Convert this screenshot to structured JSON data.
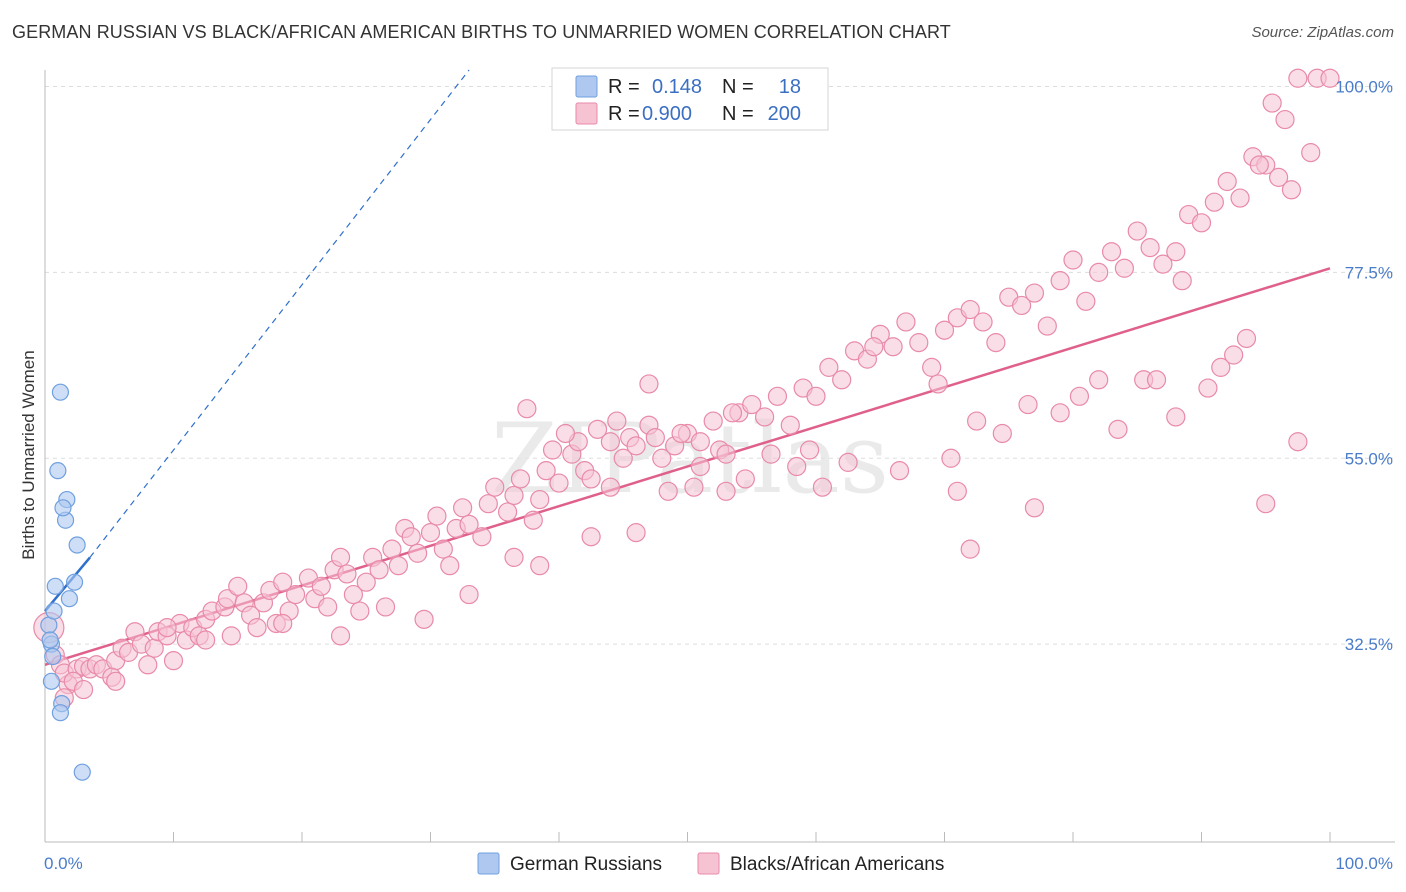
{
  "header": {
    "title": "GERMAN RUSSIAN VS BLACK/AFRICAN AMERICAN BIRTHS TO UNMARRIED WOMEN CORRELATION CHART",
    "source": "Source: ZipAtlas.com"
  },
  "watermark": "ZIPatlas",
  "colors": {
    "blue": "#6fa0e0",
    "blue_fill": "#aec8f0",
    "blue_line": "#2f6fcc",
    "pink": "#e88aa8",
    "pink_fill": "#f6c3d3",
    "pink_line": "#e0608c",
    "tick": "#4a7cc9",
    "grid": "#dddddd"
  },
  "legend": {
    "rows": [
      {
        "r_label": "R =",
        "r_value": "0.148",
        "n_label": "N =",
        "n_value": "18"
      },
      {
        "r_label": "R =",
        "r_value": "0.900",
        "n_label": "N =",
        "n_value": "200"
      }
    ]
  },
  "bottom_legend": [
    "German Russians",
    "Blacks/African Americans"
  ],
  "chart_data": {
    "type": "scatter",
    "xlabel": "",
    "ylabel": "Births to Unmarried Women",
    "xlim": [
      0,
      100
    ],
    "ylim": [
      10,
      102
    ],
    "x_tick_labels": [
      "0.0%",
      "100.0%"
    ],
    "y_ticks": [
      32.5,
      55.0,
      77.5,
      100.0
    ],
    "y_tick_labels": [
      "32.5%",
      "55.0%",
      "77.5%",
      "100.0%"
    ],
    "grid": "horizontal dashed",
    "series": [
      {
        "name": "German Russians",
        "r": 0.148,
        "n": 18,
        "trend": {
          "x": [
            0,
            3.5
          ],
          "y": [
            36.5,
            43.0
          ],
          "dashed_to": {
            "x": 33,
            "y": 102
          }
        },
        "points": [
          [
            0.3,
            34.8
          ],
          [
            0.5,
            32.5
          ],
          [
            0.6,
            31.0
          ],
          [
            0.5,
            28.0
          ],
          [
            0.7,
            36.5
          ],
          [
            0.8,
            39.5
          ],
          [
            1.2,
            63.0
          ],
          [
            1.0,
            53.5
          ],
          [
            1.7,
            50.0
          ],
          [
            1.6,
            47.5
          ],
          [
            1.4,
            49.0
          ],
          [
            2.5,
            44.5
          ],
          [
            2.3,
            40.0
          ],
          [
            1.9,
            38.0
          ],
          [
            1.3,
            25.3
          ],
          [
            1.2,
            24.2
          ],
          [
            2.9,
            17.0
          ],
          [
            0.4,
            33.0
          ]
        ]
      },
      {
        "name": "Blacks/African Americans",
        "r": 0.9,
        "n": 200,
        "trend": {
          "x": [
            0,
            100
          ],
          "y": [
            30.0,
            78.0
          ]
        },
        "points": [
          [
            0.3,
            34.5
          ],
          [
            0.8,
            31.2
          ],
          [
            1.2,
            30.0
          ],
          [
            1.8,
            27.6
          ],
          [
            1.5,
            29.0
          ],
          [
            2.5,
            29.5
          ],
          [
            2.2,
            28.0
          ],
          [
            3.0,
            29.8
          ],
          [
            3.5,
            29.5
          ],
          [
            4.0,
            30.0
          ],
          [
            4.5,
            29.5
          ],
          [
            5.5,
            30.5
          ],
          [
            5.2,
            28.5
          ],
          [
            6.0,
            32.0
          ],
          [
            6.5,
            31.5
          ],
          [
            7.0,
            34.0
          ],
          [
            7.5,
            32.5
          ],
          [
            8.5,
            32.0
          ],
          [
            8.8,
            34.0
          ],
          [
            9.5,
            33.5
          ],
          [
            10.5,
            35.0
          ],
          [
            11.0,
            33.0
          ],
          [
            11.5,
            34.5
          ],
          [
            12.0,
            33.5
          ],
          [
            12.5,
            35.5
          ],
          [
            13.0,
            36.5
          ],
          [
            14.0,
            37.0
          ],
          [
            14.2,
            38.0
          ],
          [
            15.0,
            39.5
          ],
          [
            15.5,
            37.5
          ],
          [
            16.0,
            36.0
          ],
          [
            16.5,
            34.5
          ],
          [
            17.0,
            37.5
          ],
          [
            17.5,
            39.0
          ],
          [
            18.0,
            35.0
          ],
          [
            18.5,
            40.0
          ],
          [
            19.0,
            36.5
          ],
          [
            19.5,
            38.5
          ],
          [
            20.5,
            40.5
          ],
          [
            21.0,
            38.0
          ],
          [
            21.5,
            39.5
          ],
          [
            22.0,
            37.0
          ],
          [
            22.5,
            41.5
          ],
          [
            23.0,
            43.0
          ],
          [
            23.5,
            41.0
          ],
          [
            24.0,
            38.5
          ],
          [
            24.5,
            36.5
          ],
          [
            25.0,
            40.0
          ],
          [
            25.5,
            43.0
          ],
          [
            26.0,
            41.5
          ],
          [
            27.0,
            44.0
          ],
          [
            27.5,
            42.0
          ],
          [
            28.0,
            46.5
          ],
          [
            28.5,
            45.5
          ],
          [
            29.0,
            43.5
          ],
          [
            30.0,
            46.0
          ],
          [
            30.5,
            48.0
          ],
          [
            31.0,
            44.0
          ],
          [
            31.5,
            42.0
          ],
          [
            32.0,
            46.5
          ],
          [
            32.5,
            49.0
          ],
          [
            33.0,
            47.0
          ],
          [
            34.0,
            45.5
          ],
          [
            34.5,
            49.5
          ],
          [
            35.0,
            51.5
          ],
          [
            36.0,
            48.5
          ],
          [
            36.5,
            50.5
          ],
          [
            37.0,
            52.5
          ],
          [
            38.0,
            47.5
          ],
          [
            38.5,
            50.0
          ],
          [
            39.0,
            53.5
          ],
          [
            40.0,
            52.0
          ],
          [
            41.0,
            55.5
          ],
          [
            41.5,
            57.0
          ],
          [
            42.0,
            53.5
          ],
          [
            43.0,
            58.5
          ],
          [
            44.0,
            57.0
          ],
          [
            45.0,
            55.0
          ],
          [
            45.5,
            57.5
          ],
          [
            46.0,
            56.5
          ],
          [
            47.0,
            59.0
          ],
          [
            47.5,
            57.5
          ],
          [
            48.0,
            55.0
          ],
          [
            49.0,
            56.5
          ],
          [
            50.0,
            58.0
          ],
          [
            51.0,
            57.0
          ],
          [
            52.0,
            59.5
          ],
          [
            52.5,
            56.0
          ],
          [
            53.0,
            55.5
          ],
          [
            54.0,
            60.5
          ],
          [
            55.0,
            61.5
          ],
          [
            56.0,
            60.0
          ],
          [
            57.0,
            62.5
          ],
          [
            58.0,
            59.0
          ],
          [
            59.0,
            63.5
          ],
          [
            60.0,
            62.5
          ],
          [
            61.0,
            66.0
          ],
          [
            62.0,
            64.5
          ],
          [
            63.0,
            68.0
          ],
          [
            64.0,
            67.0
          ],
          [
            65.0,
            70.0
          ],
          [
            66.0,
            68.5
          ],
          [
            67.0,
            71.5
          ],
          [
            68.0,
            69.0
          ],
          [
            69.0,
            66.0
          ],
          [
            70.0,
            70.5
          ],
          [
            71.0,
            72.0
          ],
          [
            72.0,
            73.0
          ],
          [
            73.0,
            71.5
          ],
          [
            74.0,
            69.0
          ],
          [
            75.0,
            74.5
          ],
          [
            76.0,
            73.5
          ],
          [
            77.0,
            75.0
          ],
          [
            78.0,
            71.0
          ],
          [
            79.0,
            76.5
          ],
          [
            80.0,
            79.0
          ],
          [
            81.0,
            74.0
          ],
          [
            82.0,
            77.5
          ],
          [
            83.0,
            80.0
          ],
          [
            84.0,
            78.0
          ],
          [
            85.0,
            82.5
          ],
          [
            86.0,
            80.5
          ],
          [
            87.0,
            78.5
          ],
          [
            88.0,
            80.0
          ],
          [
            89.0,
            84.5
          ],
          [
            90.0,
            83.5
          ],
          [
            91.0,
            86.0
          ],
          [
            92.0,
            88.5
          ],
          [
            93.0,
            86.5
          ],
          [
            94.0,
            91.5
          ],
          [
            95.0,
            90.5
          ],
          [
            96.0,
            89.0
          ],
          [
            97.0,
            87.5
          ],
          [
            98.5,
            92.0
          ],
          [
            96.5,
            96.0
          ],
          [
            97.5,
            101.0
          ],
          [
            99.0,
            101.0
          ],
          [
            100.0,
            101.0
          ],
          [
            95.5,
            98.0
          ],
          [
            94.5,
            90.5
          ],
          [
            37.5,
            61.0
          ],
          [
            39.5,
            56.0
          ],
          [
            40.5,
            58.0
          ],
          [
            44.5,
            59.5
          ],
          [
            47.0,
            64.0
          ],
          [
            49.5,
            58.0
          ],
          [
            53.5,
            60.5
          ],
          [
            58.5,
            54.0
          ],
          [
            64.5,
            68.5
          ],
          [
            69.5,
            64.0
          ],
          [
            72.5,
            59.5
          ],
          [
            74.5,
            58.0
          ],
          [
            76.5,
            61.5
          ],
          [
            79.0,
            60.5
          ],
          [
            80.5,
            62.5
          ],
          [
            82.0,
            64.5
          ],
          [
            83.5,
            58.5
          ],
          [
            85.5,
            64.5
          ],
          [
            88.0,
            60.0
          ],
          [
            90.5,
            63.5
          ],
          [
            91.5,
            66.0
          ],
          [
            92.5,
            67.5
          ],
          [
            93.5,
            69.5
          ],
          [
            62.5,
            54.5
          ],
          [
            60.5,
            51.5
          ],
          [
            56.5,
            55.5
          ],
          [
            54.5,
            52.5
          ],
          [
            51.0,
            54.0
          ],
          [
            42.5,
            52.5
          ],
          [
            44.0,
            51.5
          ],
          [
            48.5,
            51.0
          ],
          [
            53.0,
            51.0
          ],
          [
            59.5,
            56.0
          ],
          [
            66.5,
            53.5
          ],
          [
            70.5,
            55.0
          ],
          [
            71.0,
            51.0
          ],
          [
            72.0,
            44.0
          ],
          [
            77.0,
            49.0
          ],
          [
            86.5,
            64.5
          ],
          [
            88.5,
            76.5
          ],
          [
            95.0,
            49.5
          ],
          [
            97.5,
            57.0
          ],
          [
            36.5,
            43.0
          ],
          [
            29.5,
            35.5
          ],
          [
            23.0,
            33.5
          ],
          [
            18.5,
            35.0
          ],
          [
            12.5,
            33.0
          ],
          [
            10.0,
            30.5
          ],
          [
            8.0,
            30.0
          ],
          [
            5.5,
            28.0
          ],
          [
            3.0,
            27.0
          ],
          [
            1.5,
            26.0
          ],
          [
            9.5,
            34.5
          ],
          [
            14.5,
            33.5
          ],
          [
            26.5,
            37.0
          ],
          [
            33.0,
            38.5
          ],
          [
            38.5,
            42.0
          ],
          [
            42.5,
            45.5
          ],
          [
            46.0,
            46.0
          ],
          [
            50.5,
            51.5
          ]
        ]
      }
    ]
  }
}
